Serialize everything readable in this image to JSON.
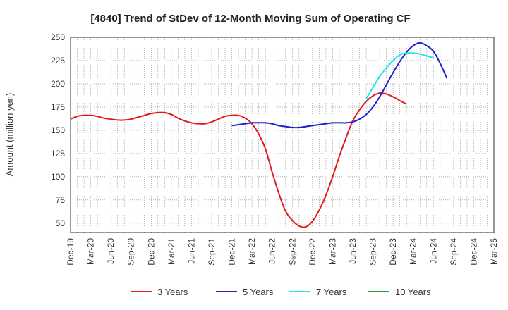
{
  "chart_data": {
    "type": "line",
    "title": "[4840]  Trend of StDev of 12-Month Moving Sum of Operating CF",
    "xlabel": "",
    "ylabel": "Amount (million yen)",
    "ylim": [
      40,
      250
    ],
    "yticks": [
      50,
      75,
      100,
      125,
      150,
      175,
      200,
      225,
      250
    ],
    "grid": true,
    "legend_position": "bottom",
    "x_tick_labels": [
      "Dec-19",
      "Mar-20",
      "Jun-20",
      "Sep-20",
      "Dec-20",
      "Mar-21",
      "Jun-21",
      "Sep-21",
      "Dec-21",
      "Mar-22",
      "Jun-22",
      "Sep-22",
      "Dec-22",
      "Mar-23",
      "Jun-23",
      "Sep-23",
      "Dec-23",
      "Mar-24",
      "Jun-24",
      "Sep-24",
      "Dec-24",
      "Mar-25"
    ],
    "series": [
      {
        "name": "3 Years",
        "color": "#e31a1c",
        "start_index": 0,
        "values": [
          162,
          165,
          166,
          166,
          165,
          163,
          162,
          161,
          161,
          162,
          164,
          166,
          168,
          169,
          169,
          167,
          163,
          160,
          158,
          157,
          157,
          159,
          162,
          165,
          166,
          166,
          163,
          157,
          146,
          130,
          105,
          82,
          63,
          53,
          47,
          46,
          52,
          64,
          80,
          100,
          122,
          142,
          160,
          172,
          181,
          187,
          190,
          189,
          186,
          182,
          178
        ]
      },
      {
        "name": "5 Years",
        "color": "#1f1fcc",
        "start_index": 24,
        "values": [
          155,
          156,
          157,
          158,
          158,
          158,
          157,
          155,
          154,
          153,
          153,
          154,
          155,
          156,
          157,
          158,
          158,
          158,
          159,
          162,
          167,
          175,
          186,
          199,
          212,
          224,
          234,
          241,
          244,
          241,
          235,
          222,
          206
        ]
      },
      {
        "name": "7 Years",
        "color": "#17e8f0",
        "start_index": 44,
        "values": [
          184,
          196,
          208,
          217,
          225,
          231,
          233,
          233,
          232,
          230,
          228
        ]
      },
      {
        "name": "10 Years",
        "color": "#2ca02c",
        "start_index": 0,
        "values": []
      }
    ]
  }
}
